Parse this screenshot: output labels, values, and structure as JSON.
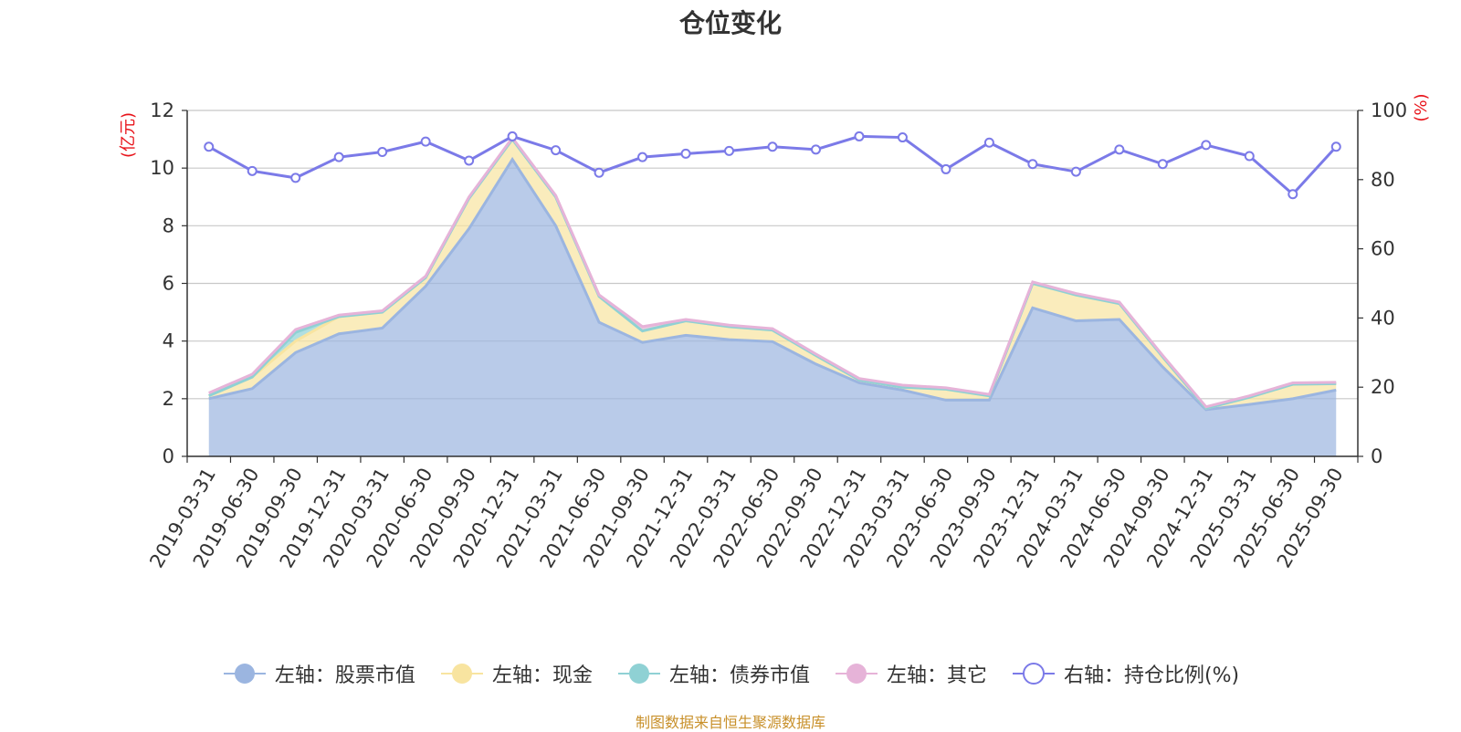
{
  "chart_data": {
    "type": "area",
    "title": "仓位变化",
    "y_left_label": "(亿元)",
    "y_right_label": "(%)",
    "ylim_left": [
      0,
      12
    ],
    "ylim_right": [
      0,
      100
    ],
    "yticks_left": [
      0,
      2,
      4,
      6,
      8,
      10,
      12
    ],
    "yticks_right": [
      0,
      20,
      40,
      60,
      80,
      100
    ],
    "grid": true,
    "legend_position": "bottom",
    "categories": [
      "2019-03-31",
      "2019-06-30",
      "2019-09-30",
      "2019-12-31",
      "2020-03-31",
      "2020-06-30",
      "2020-09-30",
      "2020-12-31",
      "2021-03-31",
      "2021-06-30",
      "2021-09-30",
      "2021-12-31",
      "2022-03-31",
      "2022-06-30",
      "2022-09-30",
      "2022-12-31",
      "2023-03-31",
      "2023-06-30",
      "2023-09-30",
      "2023-12-31",
      "2024-03-31",
      "2024-06-30",
      "2024-09-30",
      "2024-12-31",
      "2025-03-31",
      "2025-06-30",
      "2025-09-30"
    ],
    "series": [
      {
        "name": "左轴：股票市值",
        "axis": "left",
        "color": "#9bb5e0",
        "values": [
          2.0,
          2.35,
          3.6,
          4.25,
          4.45,
          5.9,
          7.9,
          10.3,
          8.0,
          4.65,
          3.95,
          4.2,
          4.05,
          3.98,
          3.2,
          2.55,
          2.3,
          1.95,
          1.95,
          5.15,
          4.7,
          4.75,
          3.1,
          1.62,
          1.8,
          2.0,
          2.3
        ]
      },
      {
        "name": "左轴：现金",
        "axis": "left",
        "color": "#f8e4a0",
        "values": [
          0.1,
          0.4,
          0.4,
          0.6,
          0.55,
          0.3,
          1.05,
          0.7,
          1.0,
          0.9,
          0.4,
          0.5,
          0.45,
          0.4,
          0.3,
          0.1,
          0.1,
          0.38,
          0.15,
          0.85,
          0.9,
          0.55,
          0.35,
          0.05,
          0.25,
          0.5,
          0.22
        ]
      },
      {
        "name": "左轴：债券市值",
        "axis": "left",
        "color": "#8fd1d4",
        "values": [
          0,
          0,
          0.3,
          0,
          0,
          0,
          0,
          0,
          0,
          0,
          0,
          0,
          0,
          0,
          0,
          0,
          0,
          0,
          0,
          0,
          0,
          0,
          0,
          0,
          0,
          0,
          0
        ]
      },
      {
        "name": "左轴：其它",
        "axis": "left",
        "color": "#e6b3d8",
        "values": [
          0.1,
          0.1,
          0.1,
          0.05,
          0.05,
          0.05,
          0.05,
          0.05,
          0.05,
          0.05,
          0.15,
          0.05,
          0.05,
          0.05,
          0.05,
          0.05,
          0.07,
          0.05,
          0.05,
          0.05,
          0.05,
          0.05,
          0.05,
          0.05,
          0.05,
          0.05,
          0.05
        ]
      },
      {
        "name": "右轴：持仓比例(%)",
        "axis": "right",
        "color": "#7b7ae8",
        "values": [
          89.5,
          82.5,
          80.5,
          86.5,
          88.0,
          91.0,
          85.5,
          92.5,
          88.5,
          82.0,
          86.5,
          87.5,
          88.3,
          89.5,
          88.7,
          92.5,
          92.2,
          83.0,
          90.7,
          84.5,
          82.3,
          88.7,
          84.5,
          90.0,
          86.8,
          75.8,
          89.5
        ]
      }
    ],
    "source_note": "制图数据来自恒生聚源数据库"
  }
}
